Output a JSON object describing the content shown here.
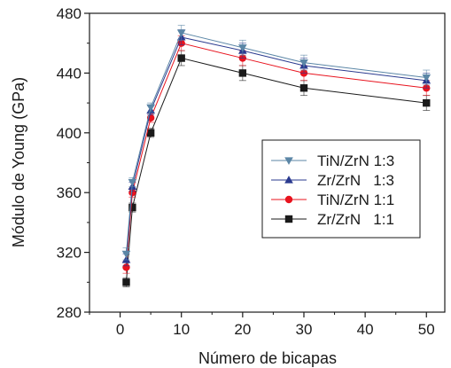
{
  "chart_data": {
    "type": "line",
    "xlabel": "Número de bicapas",
    "ylabel": "Módulo de Young (GPa)",
    "xlim": [
      -5,
      53
    ],
    "ylim": [
      280,
      480
    ],
    "xticks": [
      0,
      10,
      20,
      30,
      40,
      50
    ],
    "yticks": [
      280,
      320,
      360,
      400,
      440,
      480
    ],
    "grid": false,
    "legend_position": "center-right",
    "x": [
      1,
      2,
      5,
      10,
      20,
      30,
      50
    ],
    "series": [
      {
        "name": "TiN/ZrN 1:3",
        "marker": "triangle-down",
        "color": "#5b86a6",
        "values": [
          319,
          367,
          417,
          467,
          457,
          447,
          437
        ],
        "errors": [
          4,
          3,
          3,
          5,
          5,
          5,
          5
        ]
      },
      {
        "name": "Zr/ZrN   1:3",
        "marker": "triangle-up",
        "color": "#2a3a8f",
        "values": [
          315,
          364,
          415,
          464,
          455,
          445,
          435
        ],
        "errors": [
          4,
          3,
          3,
          5,
          5,
          5,
          5
        ]
      },
      {
        "name": "TiN/ZrN 1:1",
        "marker": "circle",
        "color": "#e8131e",
        "values": [
          310,
          360,
          410,
          460,
          450,
          440,
          430
        ],
        "errors": [
          4,
          3,
          3,
          5,
          5,
          5,
          5
        ]
      },
      {
        "name": "Zr/ZrN   1:1",
        "marker": "square",
        "color": "#1a1a1a",
        "values": [
          300,
          350,
          400,
          450,
          440,
          430,
          420
        ],
        "errors": [
          3,
          3,
          3,
          5,
          5,
          5,
          5
        ]
      }
    ]
  }
}
